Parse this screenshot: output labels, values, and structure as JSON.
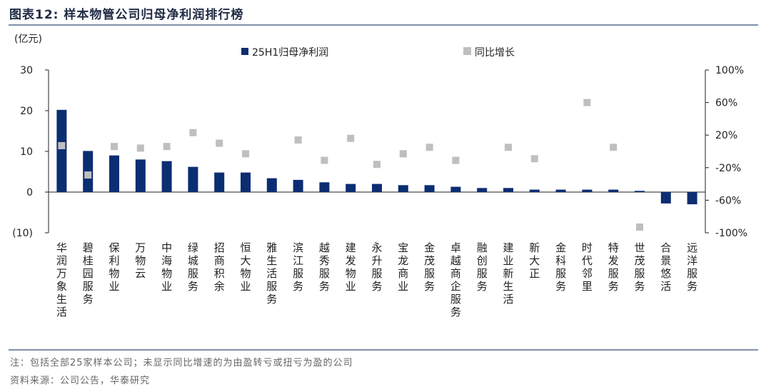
{
  "title": "图表12:   样本物管公司归母净利润排行榜",
  "unit": "(亿元)",
  "legend": {
    "bar": "25H1归母净利润",
    "marker": "同比增长"
  },
  "left_ticks": [
    "30",
    "20",
    "10",
    "0",
    "(10)"
  ],
  "right_ticks": [
    "100%",
    "60%",
    "20%",
    "-20%",
    "-60%",
    "-100%"
  ],
  "footnote": "注：包括全部25家样本公司；未显示同比增速的为由盈转亏或扭亏为盈的公司",
  "source": "资料来源：公司公告，华泰研究",
  "colors": {
    "bar": "#0b2d72",
    "marker": "#bfbfbf",
    "rule": "#7f8fa8"
  },
  "chart_data": {
    "type": "bar",
    "title": "",
    "categories": [
      "华润万象生活",
      "碧桂园服务",
      "保利物业",
      "万物云",
      "中海物业",
      "绿城服务",
      "招商积余",
      "恒大物业",
      "雅生活服务",
      "滨江服务",
      "越秀服务",
      "建发物业",
      "永升服务",
      "宝龙商业",
      "金茂服务",
      "卓越商企服务",
      "融创服务",
      "建业新生活",
      "新大正",
      "金科服务",
      "时代邻里",
      "特发服务",
      "世茂服务",
      "合景悠活",
      "远洋服务"
    ],
    "series": [
      {
        "name": "25H1归母净利润",
        "axis": "left",
        "type": "bar",
        "values": [
          20.2,
          10.1,
          9.0,
          8.0,
          7.6,
          6.2,
          4.8,
          4.8,
          3.4,
          3.0,
          2.4,
          2.0,
          2.0,
          1.7,
          1.7,
          1.3,
          1.0,
          1.0,
          0.6,
          0.6,
          0.6,
          0.6,
          0.3,
          -2.8,
          -3.0
        ]
      },
      {
        "name": "同比增长",
        "axis": "right",
        "type": "scatter",
        "values": [
          0.07,
          -0.29,
          0.06,
          0.04,
          0.06,
          0.23,
          0.1,
          -0.03,
          null,
          0.14,
          -0.11,
          0.16,
          -0.16,
          -0.03,
          0.05,
          -0.11,
          null,
          0.05,
          -0.09,
          null,
          0.6,
          0.05,
          -0.93,
          null,
          null
        ]
      }
    ],
    "ylim_left": [
      -10,
      30
    ],
    "ylim_right": [
      -1.0,
      1.0
    ],
    "ylabel": "(亿元)",
    "legend": "top"
  }
}
